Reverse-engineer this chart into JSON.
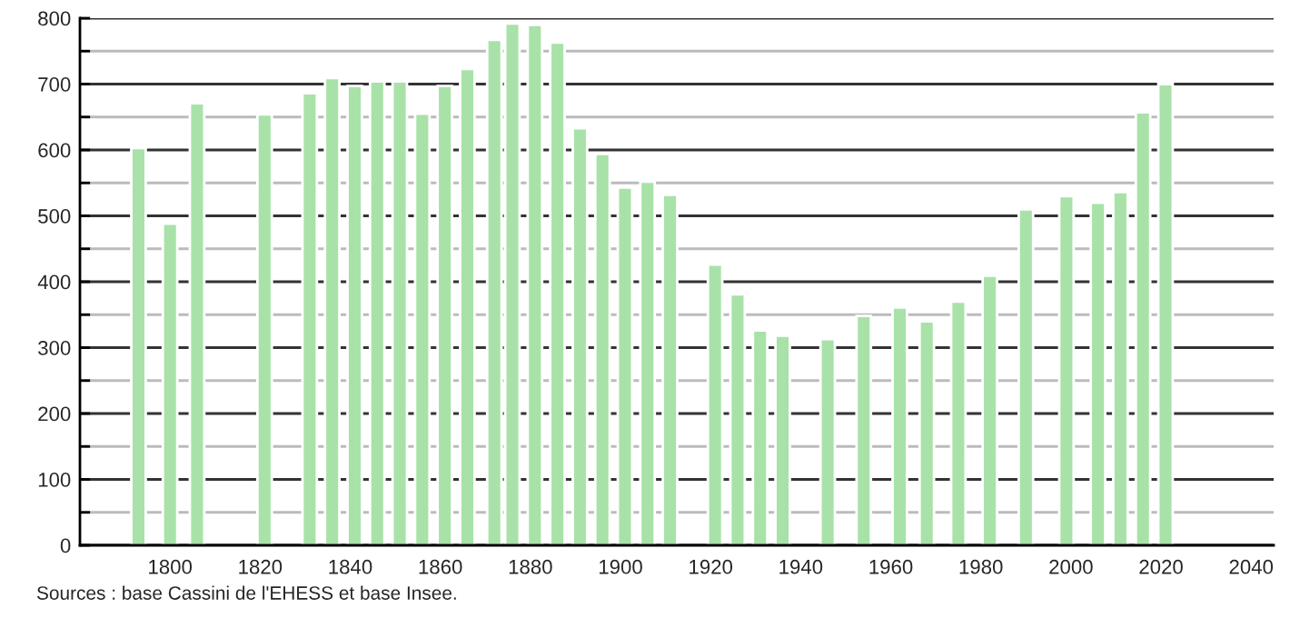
{
  "chart_data": {
    "type": "bar",
    "color": "#a8e2a8",
    "x": [
      1793,
      1800,
      1806,
      1821,
      1831,
      1836,
      1841,
      1846,
      1851,
      1856,
      1861,
      1866,
      1872,
      1876,
      1881,
      1886,
      1891,
      1896,
      1901,
      1906,
      1911,
      1921,
      1926,
      1931,
      1936,
      1946,
      1954,
      1962,
      1968,
      1975,
      1982,
      1990,
      1999,
      2006,
      2011,
      2016,
      2021
    ],
    "values": [
      603,
      488,
      671,
      654,
      686,
      709,
      697,
      704,
      704,
      655,
      697,
      723,
      767,
      792,
      790,
      763,
      633,
      594,
      543,
      552,
      532,
      426,
      381,
      326,
      318,
      313,
      348,
      361,
      340,
      370,
      409,
      510,
      530,
      520,
      536,
      657,
      700
    ],
    "xlim": [
      1780,
      2045
    ],
    "xticks": [
      1800,
      1820,
      1840,
      1860,
      1880,
      1900,
      1920,
      1940,
      1960,
      1980,
      2000,
      2020,
      2040
    ],
    "ylim": [
      0,
      800
    ],
    "yticks": [
      0,
      {
        "value": 50,
        "label": null
      },
      100,
      {
        "value": 150,
        "label": null
      },
      200,
      {
        "value": 250,
        "label": null
      },
      300,
      {
        "value": 350,
        "label": null
      },
      400,
      {
        "value": 450,
        "label": null
      },
      500,
      {
        "value": 550,
        "label": null
      },
      600,
      {
        "value": 650,
        "label": null
      },
      700,
      {
        "value": 750,
        "label": null
      },
      800
    ],
    "grid": "y",
    "annotations": [
      "Sources : base Cassini de l'EHESS et base Insee."
    ]
  }
}
